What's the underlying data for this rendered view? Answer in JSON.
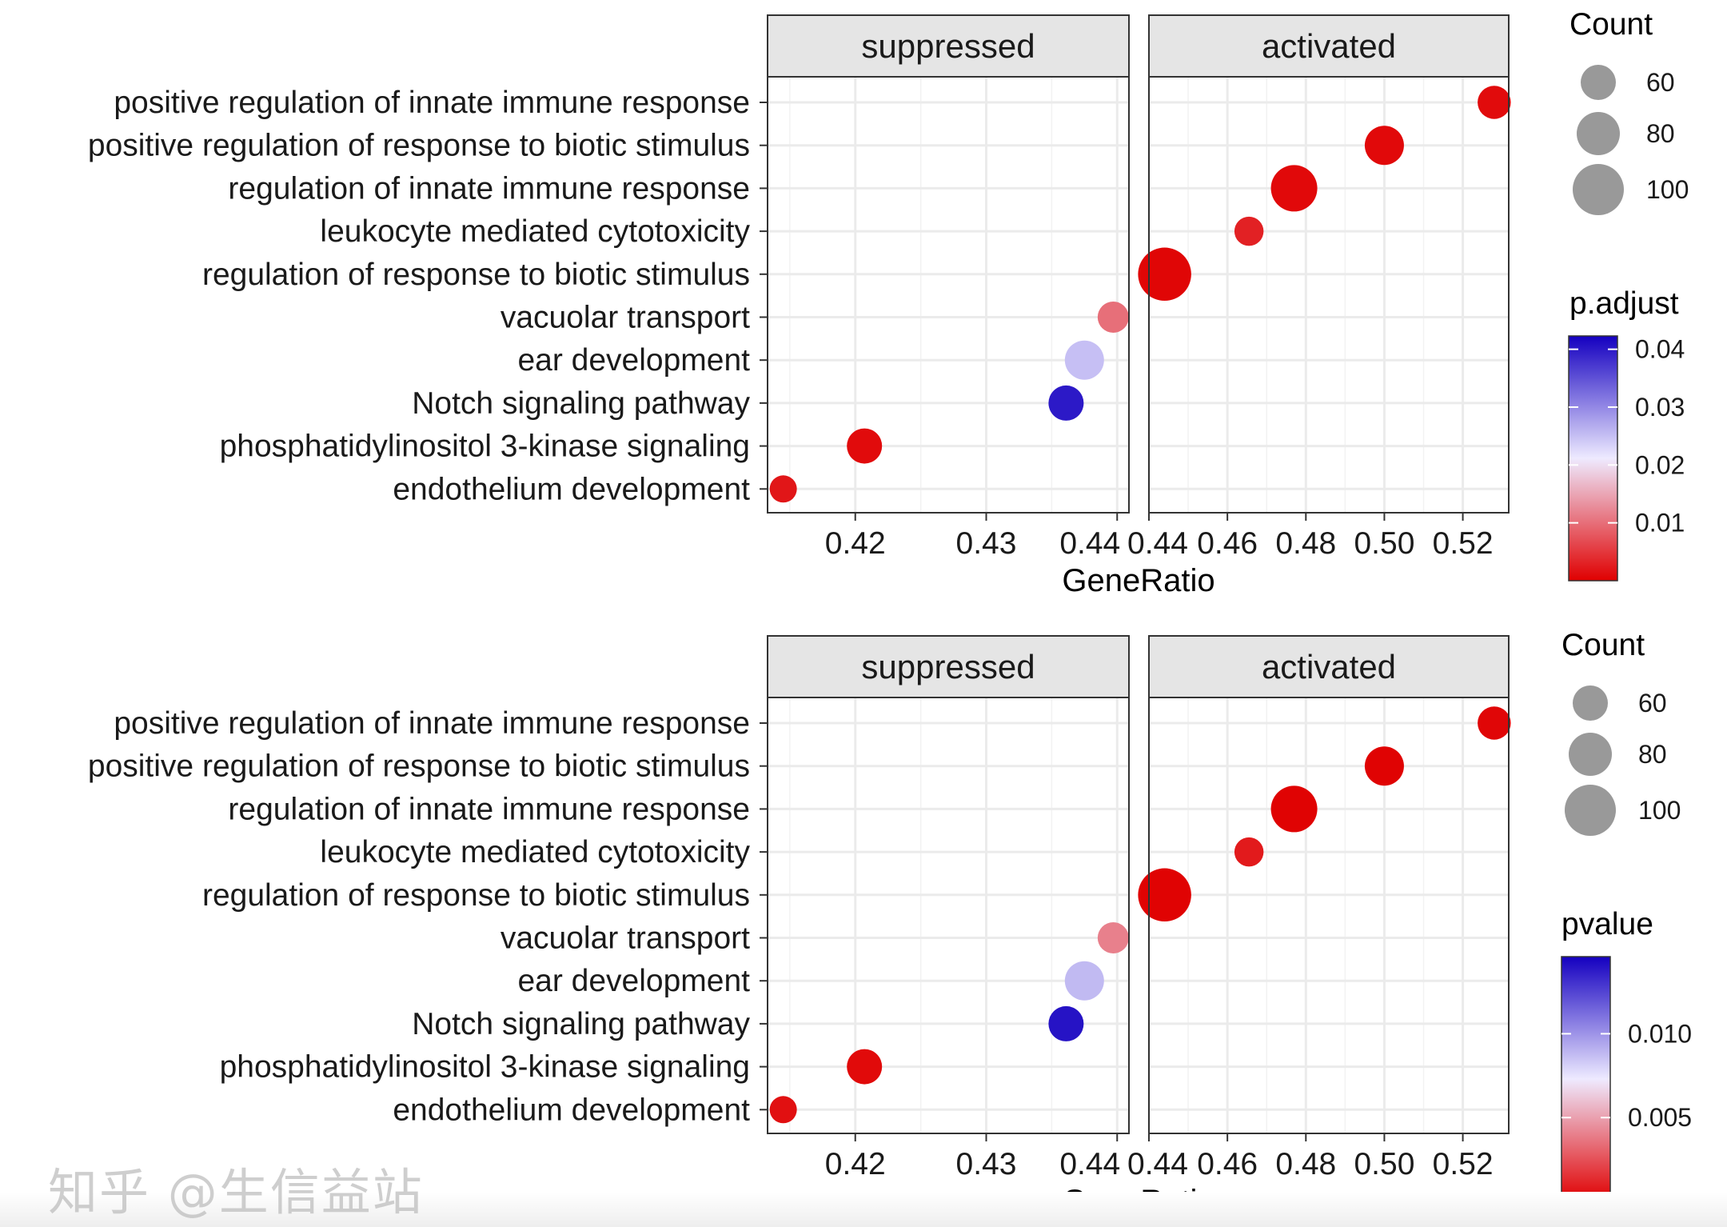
{
  "chart_data": [
    {
      "type": "scatter",
      "subtype": "faceted dot plot",
      "xlabel": "GeneRatio",
      "ylabel": "",
      "grid": true,
      "categories": [
        "positive regulation of innate immune response",
        "positive regulation of response to biotic stimulus",
        "regulation of innate immune response",
        "leukocyte mediated cytotoxicity",
        "regulation of response to biotic stimulus",
        "vacuolar transport",
        "ear development",
        "Notch signaling pathway",
        "phosphatidylinositol 3-kinase signaling",
        "endothelium development"
      ],
      "facets": [
        {
          "label": "suppressed",
          "xlim": [
            0.4133,
            0.4409
          ],
          "ticks": [
            0.42,
            0.43,
            0.44
          ],
          "tick_labels": [
            "0.42",
            "0.43",
            "0.44"
          ],
          "minor_ticks": [
            0.415,
            0.425,
            0.435
          ],
          "points": [
            {
              "category": "vacuolar transport",
              "x": 0.4397,
              "count": 50,
              "color_value": 0.01
            },
            {
              "category": "ear development",
              "x": 0.4375,
              "count": 70,
              "color_value": 0.025
            },
            {
              "category": "Notch signaling pathway",
              "x": 0.4361,
              "count": 60,
              "color_value": 0.04
            },
            {
              "category": "phosphatidylinositol 3-kinase signaling",
              "x": 0.4207,
              "count": 60,
              "color_value": 0.001
            },
            {
              "category": "endothelium development",
              "x": 0.4145,
              "count": 40,
              "color_value": 0.002
            }
          ]
        },
        {
          "label": "activated",
          "xlim": [
            0.44,
            0.5317
          ],
          "ticks": [
            0.44,
            0.46,
            0.48,
            0.5,
            0.52
          ],
          "tick_labels": [
            "0.44",
            "0.46",
            "0.48",
            "0.50",
            "0.52"
          ],
          "minor_ticks": [
            0.45,
            0.47,
            0.49,
            0.51
          ],
          "points": [
            {
              "category": "positive regulation of innate immune response",
              "x": 0.528,
              "count": 55,
              "color_value": 0.001
            },
            {
              "category": "positive regulation of response to biotic stimulus",
              "x": 0.5,
              "count": 70,
              "color_value": 0.0008
            },
            {
              "category": "regulation of innate immune response",
              "x": 0.477,
              "count": 88,
              "color_value": 0.0008
            },
            {
              "category": "leukocyte mediated cytotoxicity",
              "x": 0.4655,
              "count": 45,
              "color_value": 0.003
            },
            {
              "category": "regulation of response to biotic stimulus",
              "x": 0.444,
              "count": 105,
              "color_value": 0.0005
            }
          ]
        }
      ],
      "size_legend": {
        "title": "Count",
        "values": [
          60,
          80,
          100
        ],
        "labels": [
          "60",
          "80",
          "100"
        ]
      },
      "color_legend": {
        "title": "p.adjust",
        "range": [
          0,
          0.0423
        ],
        "ticks": [
          0.01,
          0.02,
          0.03,
          0.04
        ],
        "tick_labels": [
          "0.01",
          "0.02",
          "0.03",
          "0.04"
        ],
        "low_color": "#E00000",
        "mid_color": "#EEEAFF",
        "high_color": "#1400C0"
      }
    },
    {
      "type": "scatter",
      "subtype": "faceted dot plot",
      "xlabel": "GeneRatio",
      "ylabel": "",
      "grid": true,
      "categories": [
        "positive regulation of innate immune response",
        "positive regulation of response to biotic stimulus",
        "regulation of innate immune response",
        "leukocyte mediated cytotoxicity",
        "regulation of response to biotic stimulus",
        "vacuolar transport",
        "ear development",
        "Notch signaling pathway",
        "phosphatidylinositol 3-kinase signaling",
        "endothelium development"
      ],
      "facets": [
        {
          "label": "suppressed",
          "xlim": [
            0.4133,
            0.4409
          ],
          "ticks": [
            0.42,
            0.43,
            0.44
          ],
          "tick_labels": [
            "0.42",
            "0.43",
            "0.44"
          ],
          "minor_ticks": [
            0.415,
            0.425,
            0.435
          ],
          "points": [
            {
              "category": "vacuolar transport",
              "x": 0.4397,
              "count": 50,
              "color_value": 0.004
            },
            {
              "category": "ear development",
              "x": 0.4375,
              "count": 70,
              "color_value": 0.0088
            },
            {
              "category": "Notch signaling pathway",
              "x": 0.4361,
              "count": 60,
              "color_value": 0.014
            },
            {
              "category": "phosphatidylinositol 3-kinase signaling",
              "x": 0.4207,
              "count": 60,
              "color_value": 0.0003
            },
            {
              "category": "endothelium development",
              "x": 0.4145,
              "count": 40,
              "color_value": 0.0005
            }
          ]
        },
        {
          "label": "activated",
          "xlim": [
            0.44,
            0.5317
          ],
          "ticks": [
            0.44,
            0.46,
            0.48,
            0.5,
            0.52
          ],
          "tick_labels": [
            "0.44",
            "0.46",
            "0.48",
            "0.50",
            "0.52"
          ],
          "minor_ticks": [
            0.45,
            0.47,
            0.49,
            0.51
          ],
          "points": [
            {
              "category": "positive regulation of innate immune response",
              "x": 0.528,
              "count": 55,
              "color_value": 0.0002
            },
            {
              "category": "positive regulation of response to biotic stimulus",
              "x": 0.5,
              "count": 70,
              "color_value": 0.0001
            },
            {
              "category": "regulation of innate immune response",
              "x": 0.477,
              "count": 88,
              "color_value": 0.0001
            },
            {
              "category": "leukocyte mediated cytotoxicity",
              "x": 0.4655,
              "count": 45,
              "color_value": 0.0008
            },
            {
              "category": "regulation of response to biotic stimulus",
              "x": 0.444,
              "count": 105,
              "color_value": 0.0001
            }
          ]
        }
      ],
      "size_legend": {
        "title": "Count",
        "values": [
          60,
          80,
          100
        ],
        "labels": [
          "60",
          "80",
          "100"
        ]
      },
      "color_legend": {
        "title": "pvalue",
        "range": [
          0,
          0.0146
        ],
        "ticks": [
          0.005,
          0.01
        ],
        "tick_labels": [
          "0.005",
          "0.010"
        ],
        "low_color": "#E00000",
        "mid_color": "#EEEAFF",
        "high_color": "#1400C0"
      }
    }
  ],
  "watermark": "知乎 @生信益站"
}
